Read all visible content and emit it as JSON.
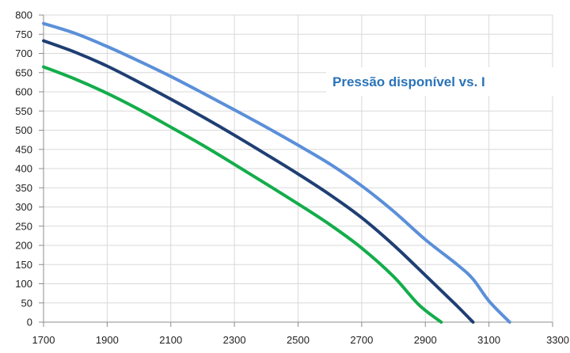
{
  "chart_data": {
    "type": "line",
    "title": "Pressão disponível vs. I",
    "xlabel": "",
    "ylabel": "",
    "xlim": [
      1700,
      3300
    ],
    "ylim": [
      0,
      800
    ],
    "x_ticks": [
      "1700",
      "1900",
      "2100",
      "2300",
      "2500",
      "2700",
      "2900",
      "3100",
      "3300"
    ],
    "y_ticks": [
      "0",
      "50",
      "100",
      "150",
      "200",
      "250",
      "300",
      "350",
      "400",
      "450",
      "500",
      "550",
      "600",
      "650",
      "700",
      "750",
      "800"
    ],
    "grid": true,
    "legend": "none",
    "series": [
      {
        "color": "#5b8fd9",
        "points": [
          [
            1700,
            778
          ],
          [
            1800,
            752
          ],
          [
            1900,
            718
          ],
          [
            2000,
            680
          ],
          [
            2100,
            640
          ],
          [
            2200,
            597
          ],
          [
            2300,
            553
          ],
          [
            2400,
            508
          ],
          [
            2500,
            461
          ],
          [
            2600,
            412
          ],
          [
            2700,
            355
          ],
          [
            2800,
            289
          ],
          [
            2900,
            215
          ],
          [
            3000,
            150
          ],
          [
            3050,
            112
          ],
          [
            3100,
            55
          ],
          [
            3165,
            0
          ]
        ]
      },
      {
        "color": "#1f3f73",
        "points": [
          [
            1700,
            733
          ],
          [
            1800,
            703
          ],
          [
            1900,
            667
          ],
          [
            2000,
            625
          ],
          [
            2100,
            581
          ],
          [
            2200,
            535
          ],
          [
            2300,
            487
          ],
          [
            2400,
            437
          ],
          [
            2500,
            386
          ],
          [
            2600,
            332
          ],
          [
            2700,
            272
          ],
          [
            2800,
            201
          ],
          [
            2900,
            122
          ],
          [
            2950,
            82
          ],
          [
            3000,
            42
          ],
          [
            3050,
            0
          ]
        ]
      },
      {
        "color": "#13ad4b",
        "points": [
          [
            1700,
            665
          ],
          [
            1800,
            633
          ],
          [
            1900,
            596
          ],
          [
            2000,
            554
          ],
          [
            2100,
            508
          ],
          [
            2200,
            461
          ],
          [
            2300,
            411
          ],
          [
            2400,
            360
          ],
          [
            2500,
            308
          ],
          [
            2600,
            254
          ],
          [
            2700,
            193
          ],
          [
            2800,
            119
          ],
          [
            2880,
            45
          ],
          [
            2950,
            0
          ]
        ]
      }
    ]
  }
}
